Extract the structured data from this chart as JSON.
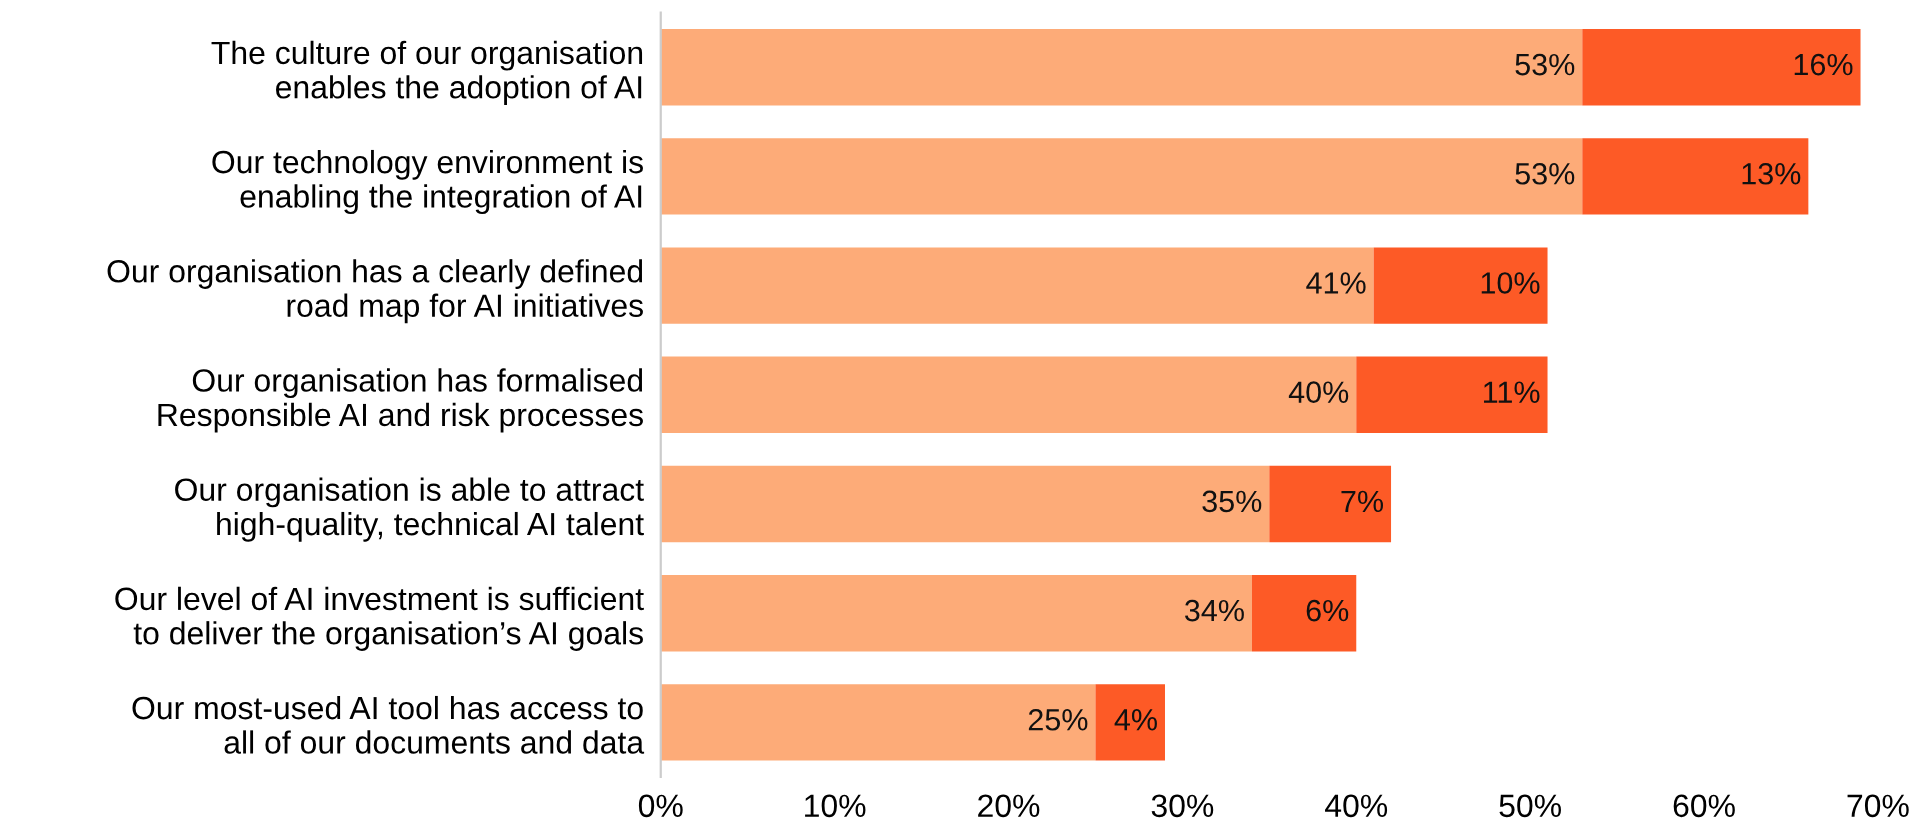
{
  "chart_data": {
    "type": "bar",
    "orientation": "horizontal",
    "stacked": true,
    "categories": [
      "The culture of our organisation\nenables the adoption of AI",
      "Our technology environment is\nenabling the integration of AI",
      "Our organisation has a clearly defined\nroad map for AI initiatives",
      "Our organisation has formalised\nResponsible AI and risk processes",
      "Our organisation is able to attract\nhigh-quality, technical AI talent",
      "Our level of AI investment is sufficient\nto deliver the organisation’s AI goals",
      "Our most-used AI tool has access to\nall of our documents and data"
    ],
    "series": [
      {
        "color": "#fdab78",
        "values": [
          53,
          53,
          41,
          40,
          35,
          34,
          25
        ],
        "value_labels": [
          "53%",
          "53%",
          "41%",
          "40%",
          "35%",
          "34%",
          "25%"
        ]
      },
      {
        "color": "#fd5a26",
        "values": [
          16,
          13,
          10,
          11,
          7,
          6,
          4
        ],
        "value_labels": [
          "16%",
          "13%",
          "10%",
          "11%",
          "7%",
          "6%",
          "4%"
        ]
      }
    ],
    "xlim": [
      0,
      70
    ],
    "xticks": [
      {
        "value": 0,
        "label": "0%"
      },
      {
        "value": 10,
        "label": "10%"
      },
      {
        "value": 20,
        "label": "20%"
      },
      {
        "value": 30,
        "label": "30%"
      },
      {
        "value": 40,
        "label": "40%"
      },
      {
        "value": 50,
        "label": "50%"
      },
      {
        "value": 60,
        "label": "60%"
      },
      {
        "value": 70,
        "label": "70%"
      }
    ],
    "grid": false,
    "legend": false
  }
}
